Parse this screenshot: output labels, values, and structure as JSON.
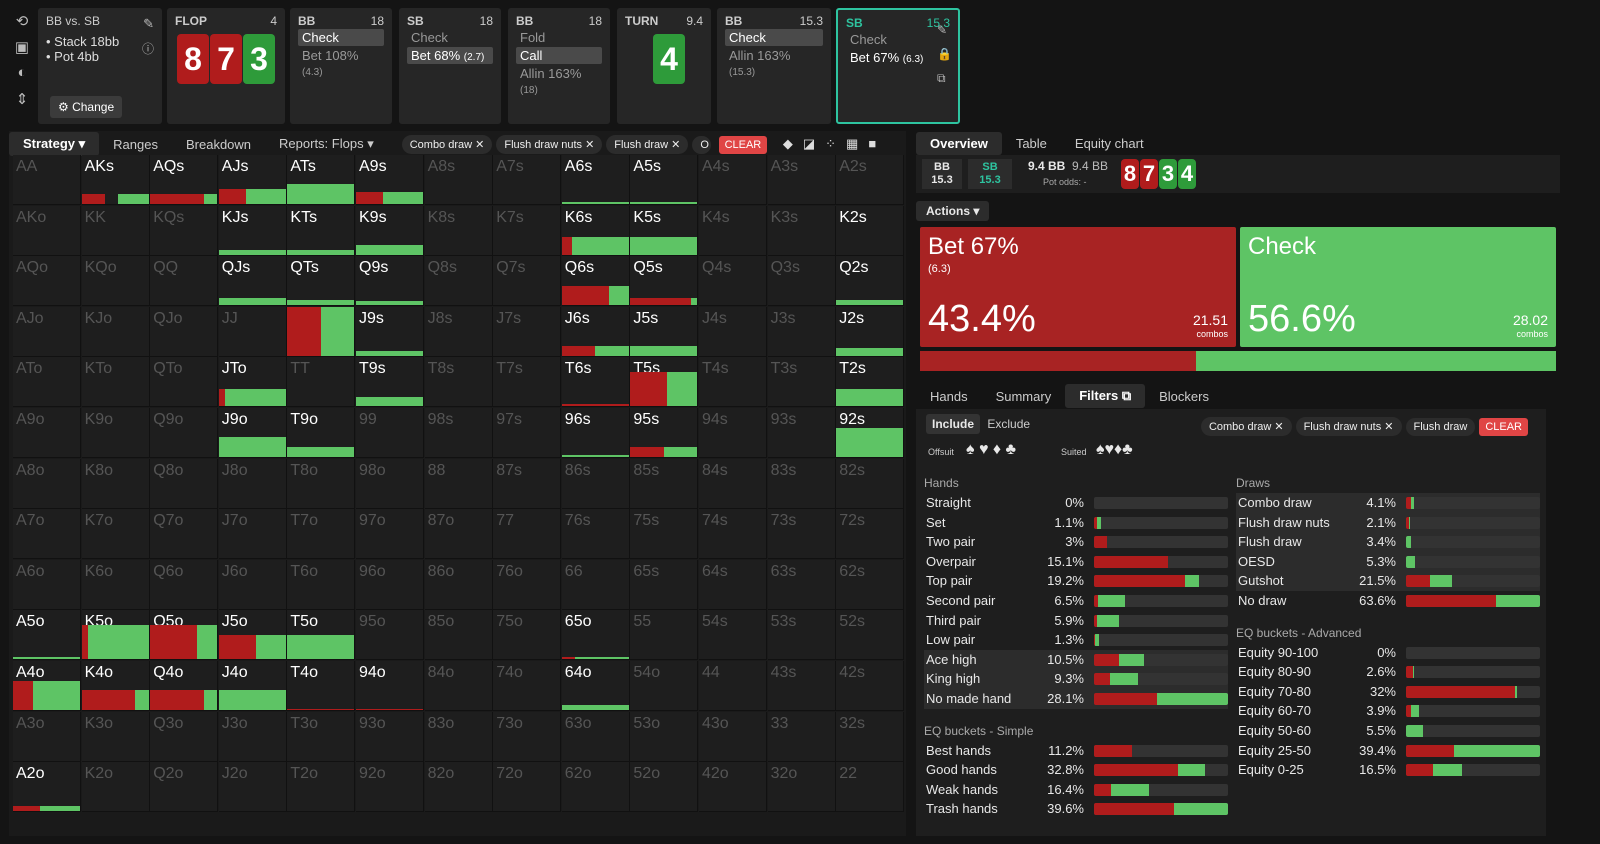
{
  "header": {
    "matchup": {
      "title": "BB vs. SB",
      "stack": "Stack 18bb",
      "pot": "Pot 4bb",
      "change": "Change"
    },
    "flop": {
      "label": "FLOP",
      "num": "4",
      "cards": [
        "8",
        "7",
        "3"
      ]
    },
    "bb1": {
      "label": "BB",
      "num": "18",
      "rows": [
        [
          "Check",
          ""
        ],
        [
          "Bet 108%",
          "(4.3)"
        ]
      ]
    },
    "sb1": {
      "label": "SB",
      "num": "18",
      "rows": [
        [
          "Check",
          ""
        ],
        [
          "Bet 68%",
          "(2.7)"
        ]
      ]
    },
    "bb2": {
      "label": "BB",
      "num": "18",
      "rows": [
        [
          "Fold",
          ""
        ],
        [
          "Call",
          ""
        ],
        [
          "Allin 163%",
          "(18)"
        ]
      ]
    },
    "turn": {
      "label": "TURN",
      "num": "9.4",
      "card": "4"
    },
    "bb3": {
      "label": "BB",
      "num": "15.3",
      "rows": [
        [
          "Check",
          ""
        ],
        [
          "Allin 163%",
          "(15.3)"
        ]
      ]
    },
    "sb2": {
      "label": "SB",
      "num": "15.3",
      "rows": [
        [
          "Check",
          ""
        ],
        [
          "Bet 67%",
          "(6.3)"
        ]
      ]
    }
  },
  "left": {
    "tabs": [
      "Strategy",
      "Ranges",
      "Breakdown",
      "Reports: Flops"
    ],
    "chips": [
      "Combo draw",
      "Flush draw nuts",
      "Flush draw",
      "O"
    ],
    "clear": "CLEAR"
  },
  "grid": [
    "AA",
    "AKs",
    "AQs",
    "AJs",
    "ATs",
    "A9s",
    "A8s",
    "A7s",
    "A6s",
    "A5s",
    "A4s",
    "A3s",
    "A2s",
    "AKo",
    "KK",
    "KQs",
    "KJs",
    "KTs",
    "K9s",
    "K8s",
    "K7s",
    "K6s",
    "K5s",
    "K4s",
    "K3s",
    "K2s",
    "AQo",
    "KQo",
    "QQ",
    "QJs",
    "QTs",
    "Q9s",
    "Q8s",
    "Q7s",
    "Q6s",
    "Q5s",
    "Q4s",
    "Q3s",
    "Q2s",
    "AJo",
    "KJo",
    "QJo",
    "JJ",
    "JTs",
    "J9s",
    "J8s",
    "J7s",
    "J6s",
    "J5s",
    "J4s",
    "J3s",
    "J2s",
    "ATo",
    "KTo",
    "QTo",
    "JTo",
    "TT",
    "T9s",
    "T8s",
    "T7s",
    "T6s",
    "T5s",
    "T4s",
    "T3s",
    "T2s",
    "A9o",
    "K9o",
    "Q9o",
    "J9o",
    "T9o",
    "99",
    "98s",
    "97s",
    "96s",
    "95s",
    "94s",
    "93s",
    "92s",
    "A8o",
    "K8o",
    "Q8o",
    "J8o",
    "T8o",
    "98o",
    "88",
    "87s",
    "86s",
    "85s",
    "84s",
    "83s",
    "82s",
    "A7o",
    "K7o",
    "Q7o",
    "J7o",
    "T7o",
    "97o",
    "87o",
    "77",
    "76s",
    "75s",
    "74s",
    "73s",
    "72s",
    "A6o",
    "K6o",
    "Q6o",
    "J6o",
    "T6o",
    "96o",
    "86o",
    "76o",
    "66",
    "65s",
    "64s",
    "63s",
    "62s",
    "A5o",
    "K5o",
    "Q5o",
    "J5o",
    "T5o",
    "95o",
    "85o",
    "75o",
    "65o",
    "55",
    "54s",
    "53s",
    "52s",
    "A4o",
    "K4o",
    "Q4o",
    "J4o",
    "T4o",
    "94o",
    "84o",
    "74o",
    "64o",
    "54o",
    "44",
    "43s",
    "42s",
    "A3o",
    "K3o",
    "Q3o",
    "J3o",
    "T3o",
    "93o",
    "83o",
    "73o",
    "63o",
    "53o",
    "43o",
    "33",
    "32s",
    "A2o",
    "K2o",
    "Q2o",
    "J2o",
    "T2o",
    "92o",
    "82o",
    "72o",
    "62o",
    "52o",
    "42o",
    "32o",
    "22"
  ],
  "right": {
    "tabs": [
      "Overview",
      "Table",
      "Equity chart"
    ],
    "bb": "BB",
    "bbv": "15.3",
    "sb": "SB",
    "sbv": "15.3",
    "pot": "9.4 BB",
    "pot2": "9.4 BB",
    "potodds": "Pot odds: -",
    "board": [
      "8",
      "7",
      "3",
      "4"
    ],
    "actions_label": "Actions",
    "bet": {
      "name": "Bet 67%",
      "size": "(6.3)",
      "pct": "43.4%",
      "combos": "21.51",
      "cl": "combos"
    },
    "check": {
      "name": "Check",
      "pct": "56.6%",
      "combos": "28.02",
      "cl": "combos"
    },
    "tabs2": [
      "Hands",
      "Summary",
      "Filters",
      "Blockers"
    ],
    "include": "Include",
    "exclude": "Exclude",
    "offsuit": "Offsuit",
    "suited": "Suited",
    "chips": [
      "Combo draw",
      "Flush draw nuts",
      "Flush draw"
    ],
    "clear": "CLEAR",
    "hands_hd": "Hands",
    "draws_hd": "Draws",
    "eqs_hd": "EQ buckets - Simple",
    "eqa_hd": "EQ buckets - Advanced",
    "hands": [
      [
        "Straight",
        "0%",
        0,
        0
      ],
      [
        "Set",
        "1.1%",
        0.02,
        0.03
      ],
      [
        "Two pair",
        "3%",
        0.1,
        0
      ],
      [
        "Overpair",
        "15.1%",
        0.55,
        0
      ],
      [
        "Top pair",
        "19.2%",
        0.68,
        0.1
      ],
      [
        "Second pair",
        "6.5%",
        0.03,
        0.2
      ],
      [
        "Third pair",
        "5.9%",
        0.02,
        0.17
      ],
      [
        "Low pair",
        "1.3%",
        0.01,
        0.03
      ],
      [
        "Ace high",
        "10.5%",
        0.19,
        0.18
      ],
      [
        "King high",
        "9.3%",
        0.12,
        0.21
      ],
      [
        "No made hand",
        "28.1%",
        0.47,
        0.53
      ]
    ],
    "eqs": [
      [
        "Best hands",
        "11.2%",
        0.28,
        0
      ],
      [
        "Good hands",
        "32.8%",
        0.63,
        0.2
      ],
      [
        "Weak hands",
        "16.4%",
        0.13,
        0.28
      ],
      [
        "Trash hands",
        "39.6%",
        0.6,
        0.4
      ]
    ],
    "draws": [
      [
        "Combo draw",
        "4.1%",
        0.04,
        0.02
      ],
      [
        "Flush draw nuts",
        "2.1%",
        0.02,
        0.01
      ],
      [
        "Flush draw",
        "3.4%",
        0,
        0.04
      ],
      [
        "OESD",
        "5.3%",
        0,
        0.07
      ],
      [
        "Gutshot",
        "21.5%",
        0.18,
        0.16
      ],
      [
        "No draw",
        "63.6%",
        0.67,
        0.33
      ]
    ],
    "eqa": [
      [
        "Equity 90-100",
        "0%",
        0,
        0
      ],
      [
        "Equity 80-90",
        "2.6%",
        0.05,
        0.01
      ],
      [
        "Equity 70-80",
        "32%",
        0.81,
        0.02
      ],
      [
        "Equity 60-70",
        "3.9%",
        0.04,
        0.06
      ],
      [
        "Equity 50-60",
        "5.5%",
        0,
        0.13
      ],
      [
        "Equity 25-50",
        "39.4%",
        0.36,
        0.64
      ],
      [
        "Equity 0-25",
        "16.5%",
        0.2,
        0.22
      ]
    ]
  },
  "colors": {
    "red": "#b01c1c",
    "green": "#5ec465",
    "accent": "#2ec4a0"
  }
}
